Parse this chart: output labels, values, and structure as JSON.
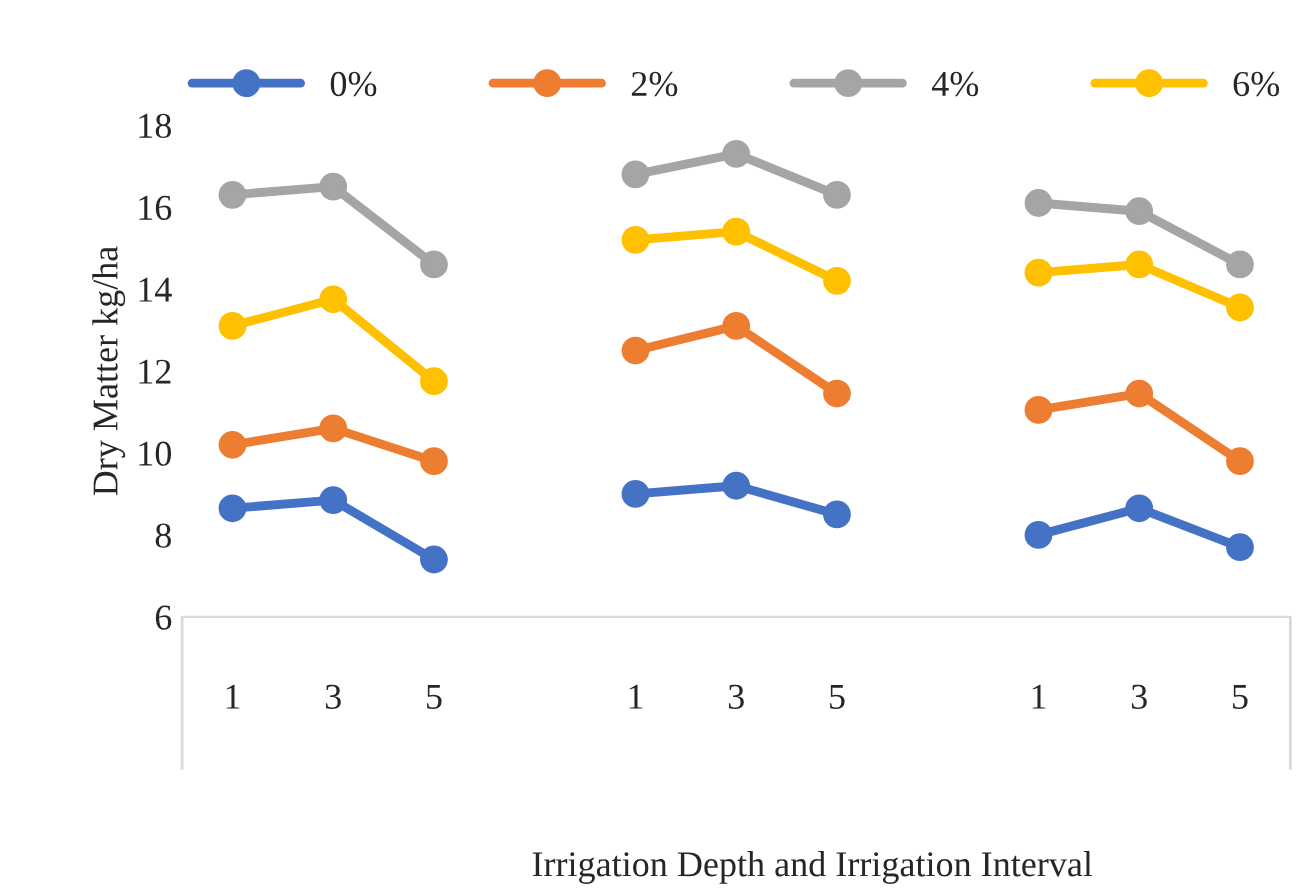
{
  "chart_data": {
    "type": "line",
    "xlabel": "Irrigation Depth and Irrigation Interval",
    "ylabel": "Dry Matter kg/ha",
    "categories": [
      "1",
      "3",
      "5",
      null,
      "1",
      "3",
      "5",
      null,
      "1",
      "3",
      "5"
    ],
    "series": [
      {
        "name": "0%",
        "color": "#4472c4",
        "values": [
          8.65,
          8.85,
          7.4,
          null,
          9.0,
          9.2,
          8.5,
          null,
          8.0,
          8.65,
          7.7
        ]
      },
      {
        "name": "2%",
        "color": "#ed7d31",
        "values": [
          10.2,
          10.6,
          9.8,
          null,
          12.5,
          13.1,
          11.45,
          null,
          11.05,
          11.45,
          9.8
        ]
      },
      {
        "name": "4%",
        "color": "#a5a5a5",
        "values": [
          16.3,
          16.5,
          14.6,
          null,
          16.8,
          17.3,
          16.3,
          null,
          16.1,
          15.9,
          14.6
        ]
      },
      {
        "name": "6%",
        "color": "#ffc000",
        "values": [
          13.1,
          13.75,
          11.75,
          null,
          15.2,
          15.4,
          14.2,
          null,
          14.4,
          14.6,
          13.55
        ]
      }
    ],
    "ylim": [
      6,
      18
    ],
    "yticks": [
      6,
      8,
      10,
      12,
      14,
      16,
      18
    ],
    "grid": false,
    "legend": "top",
    "marker": "circle",
    "line_style": "solid"
  }
}
